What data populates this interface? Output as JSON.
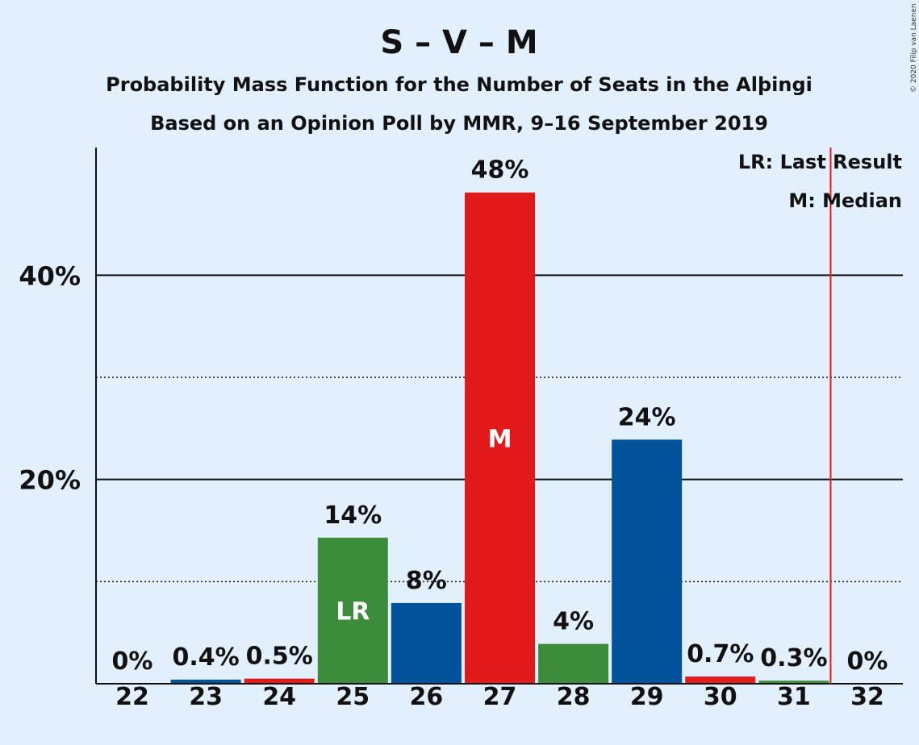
{
  "chart_data": {
    "type": "bar",
    "title": "S – V – M",
    "subtitle1": "Probability Mass Function for the Number of Seats in the Alþingi",
    "subtitle2": "Based on an Opinion Poll by MMR, 9–16 September 2019",
    "copyright": "© 2020 Filip van Laenen",
    "legend": {
      "lr": "LR: Last Result",
      "m": "M: Median",
      "placement": "top-right"
    },
    "categories": [
      "22",
      "23",
      "24",
      "25",
      "26",
      "27",
      "28",
      "29",
      "30",
      "31",
      "32"
    ],
    "values": [
      0,
      0.4,
      0.5,
      14.3,
      7.9,
      48.1,
      3.9,
      23.9,
      0.7,
      0.3,
      0
    ],
    "labels": [
      "0%",
      "0.4%",
      "0.5%",
      "14%",
      "8%",
      "48%",
      "4%",
      "24%",
      "0.7%",
      "0.3%",
      "0%"
    ],
    "colors": [
      "#e31a1c",
      "#00529b",
      "#e31a1c",
      "#3b8c3b",
      "#00529b",
      "#e31a1c",
      "#3b8c3b",
      "#00529b",
      "#e31a1c",
      "#3b8c3b",
      "#00529b"
    ],
    "bar_marks": {
      "25": "LR",
      "27": "M"
    },
    "majority_line": 31.5,
    "majority_color": "#e31a1c",
    "yticks": [
      {
        "value": 20,
        "label": "20%"
      },
      {
        "value": 40,
        "label": "40%"
      }
    ],
    "minor_gridlines": [
      10,
      30
    ],
    "ylim": [
      0,
      52.5
    ]
  }
}
